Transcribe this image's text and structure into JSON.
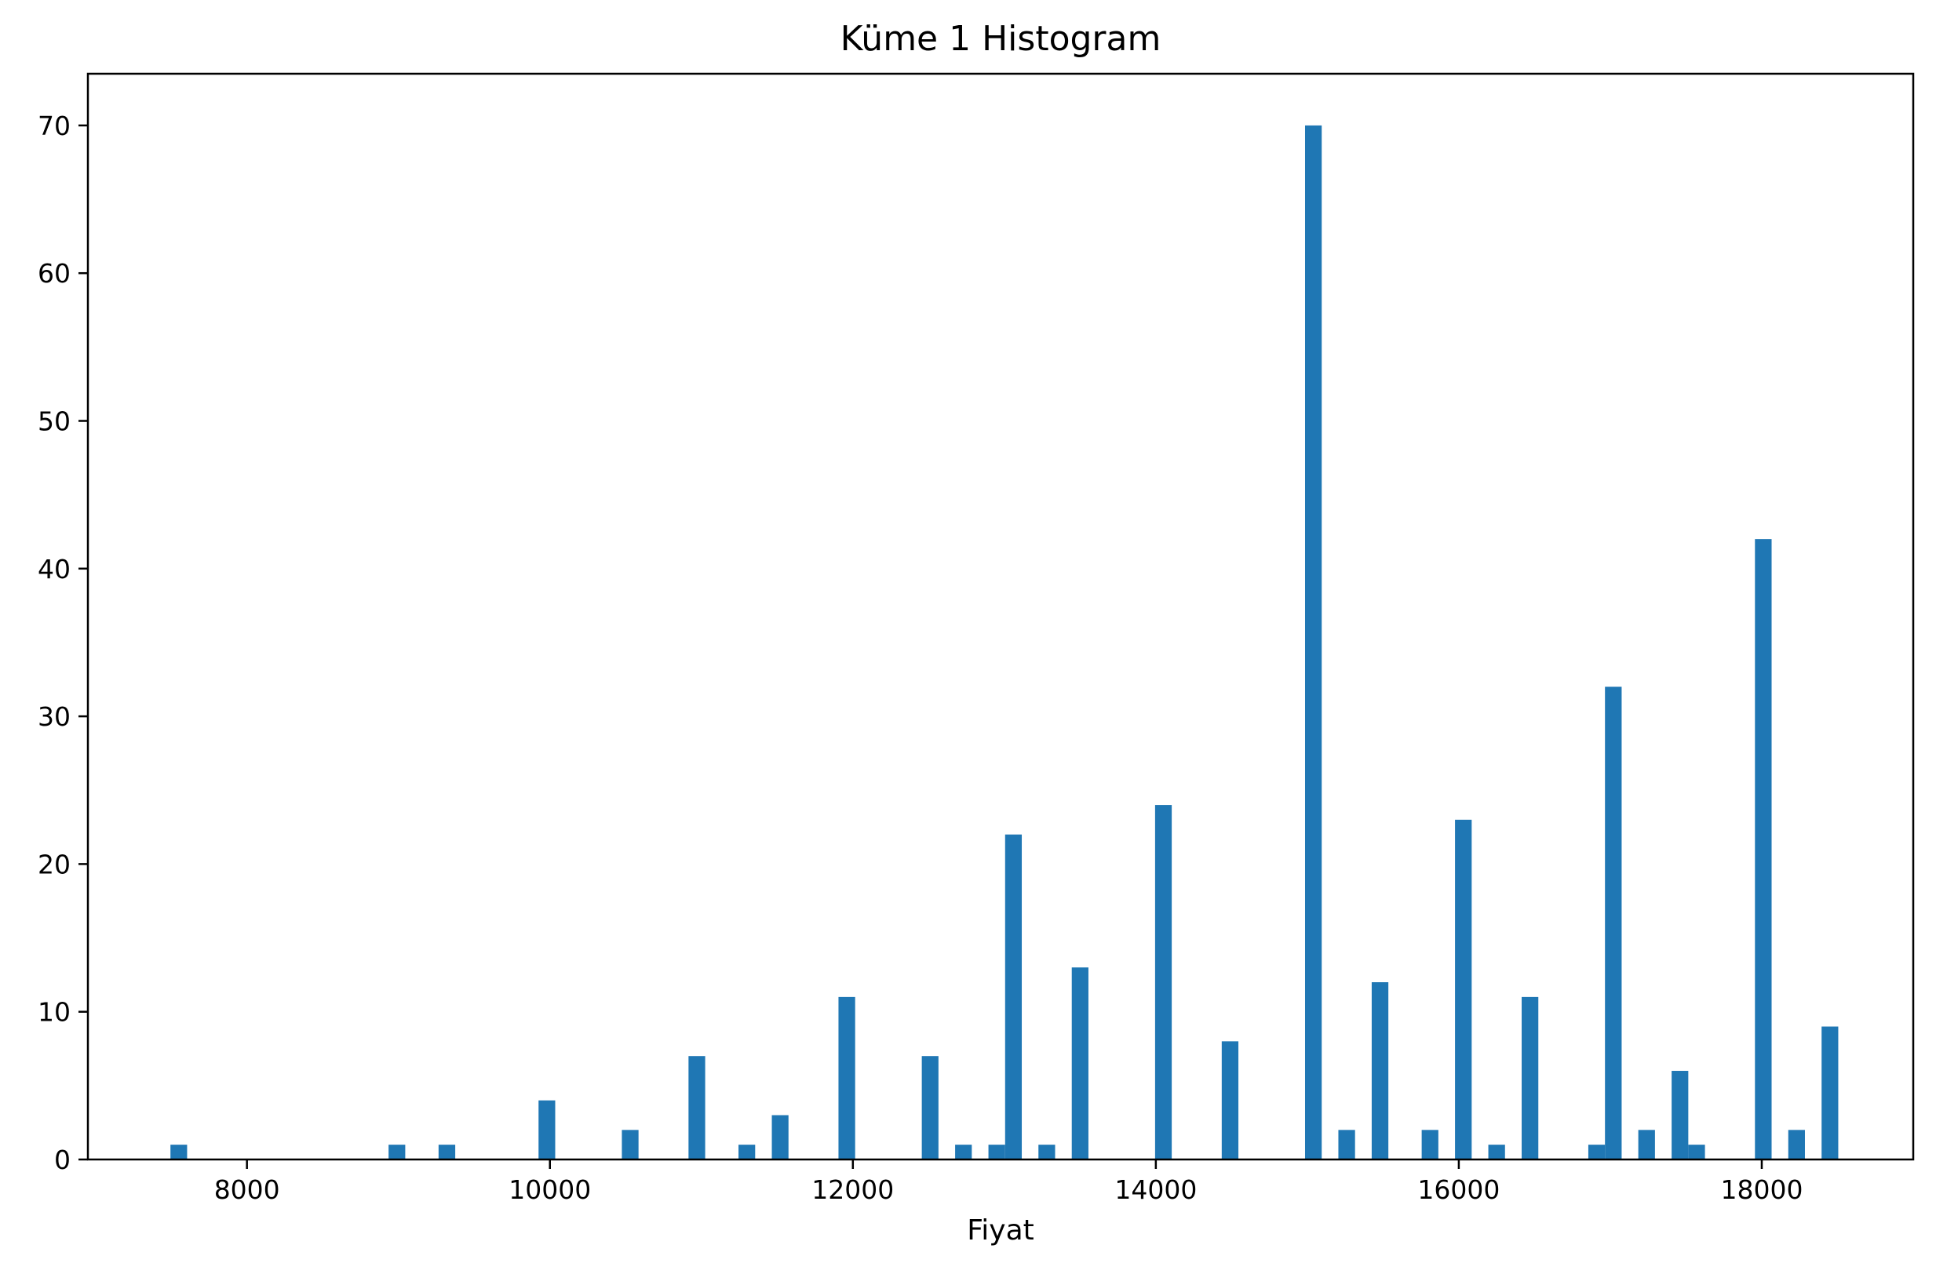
{
  "chart_data": {
    "type": "bar",
    "title": "Küme 1 Histogram",
    "xlabel": "Fiyat",
    "ylabel": "",
    "xlim": [
      6950,
      19000
    ],
    "ylim": [
      0,
      73.5
    ],
    "xticks": [
      8000,
      10000,
      12000,
      14000,
      16000,
      18000
    ],
    "yticks": [
      0,
      10,
      20,
      30,
      40,
      50,
      60,
      70
    ],
    "bin_width": 110,
    "color": "#1f77b4",
    "grid": false,
    "bars": [
      {
        "x": 7550,
        "value": 1
      },
      {
        "x": 8990,
        "value": 1
      },
      {
        "x": 9320,
        "value": 1
      },
      {
        "x": 9980,
        "value": 4
      },
      {
        "x": 10530,
        "value": 2
      },
      {
        "x": 10970,
        "value": 7
      },
      {
        "x": 11300,
        "value": 1
      },
      {
        "x": 11520,
        "value": 3
      },
      {
        "x": 11960,
        "value": 11
      },
      {
        "x": 12510,
        "value": 7
      },
      {
        "x": 12730,
        "value": 1
      },
      {
        "x": 12950,
        "value": 1
      },
      {
        "x": 13060,
        "value": 22
      },
      {
        "x": 13280,
        "value": 1
      },
      {
        "x": 13500,
        "value": 13
      },
      {
        "x": 14050,
        "value": 24
      },
      {
        "x": 14490,
        "value": 8
      },
      {
        "x": 15040,
        "value": 70
      },
      {
        "x": 15260,
        "value": 2
      },
      {
        "x": 15480,
        "value": 12
      },
      {
        "x": 15810,
        "value": 2
      },
      {
        "x": 16030,
        "value": 23
      },
      {
        "x": 16250,
        "value": 1
      },
      {
        "x": 16470,
        "value": 11
      },
      {
        "x": 16910,
        "value": 1
      },
      {
        "x": 17020,
        "value": 32
      },
      {
        "x": 17240,
        "value": 2
      },
      {
        "x": 17460,
        "value": 6
      },
      {
        "x": 17570,
        "value": 1
      },
      {
        "x": 18010,
        "value": 42
      },
      {
        "x": 18230,
        "value": 2
      },
      {
        "x": 18450,
        "value": 9
      }
    ]
  }
}
